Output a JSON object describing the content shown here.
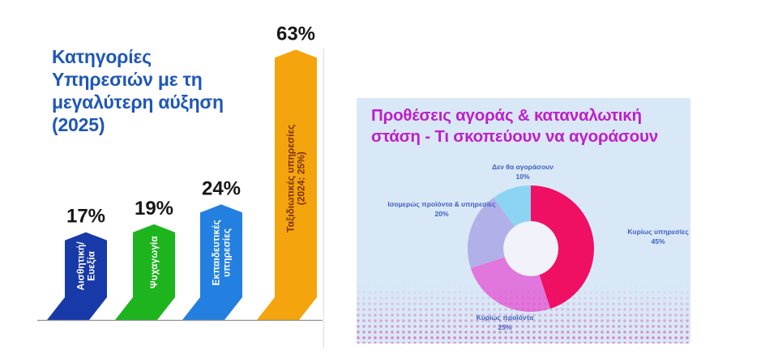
{
  "chart_data": [
    {
      "type": "bar",
      "title": "Κατηγορίες\nΥπηρεσιών με τη\nμεγαλύτερη αύξηση\n(2025)",
      "title_color": "#1e57b8",
      "axis": {
        "baseline_color": "#8f8f8f",
        "grid": false
      },
      "ylim": [
        0,
        70
      ],
      "categories": [
        {
          "label_lines": [
            "Αισθητική/",
            "Ευεξία"
          ],
          "value": 17,
          "value_label": "17%",
          "color": "#1839a8",
          "text_color": "#ffffff"
        },
        {
          "label_lines": [
            "Ψυχαγωγία"
          ],
          "value": 19,
          "value_label": "19%",
          "color": "#1db41d",
          "text_color": "#ffffff"
        },
        {
          "label_lines": [
            "Εκπαιδευτικές",
            "υπηρεσίες"
          ],
          "value": 24,
          "value_label": "24%",
          "color": "#2480e0",
          "text_color": "#ffffff"
        },
        {
          "label_lines": [
            "Ταξιδιωτικές υπηρεσίες",
            "(2024: 25%)"
          ],
          "value": 63,
          "value_label": "63%",
          "color": "#f4a40c",
          "text_color": "#7b3106"
        }
      ],
      "value_label_color": "#161616"
    },
    {
      "type": "pie",
      "donut": true,
      "title": "Προθέσεις αγοράς & καταναλωτική\nστάση - Τι σκοπεύουν να αγοράσουν",
      "title_color": "#bf1ecb",
      "label_color": "#3d5fc2",
      "hole_color": "#f2f2fa",
      "panel_color": "#d9e8f7",
      "start_angle_deg": -90,
      "direction": "clockwise",
      "legend_position": "around",
      "slices": [
        {
          "label": "Κυρίως υπηρεσίες",
          "pct_label": "45%",
          "value": 45,
          "color": "#ef0f63"
        },
        {
          "label": "Κυρίως προϊόντα",
          "pct_label": "25%",
          "value": 25,
          "color": "#e176dc"
        },
        {
          "label": "Ισομερώς προϊόντα & υπηρεσίες",
          "pct_label": "20%",
          "value": 20,
          "color": "#b2b0e8"
        },
        {
          "label": "Δεν θα αγοράσουν",
          "pct_label": "10%",
          "value": 10,
          "color": "#8cd5f2"
        }
      ]
    }
  ]
}
